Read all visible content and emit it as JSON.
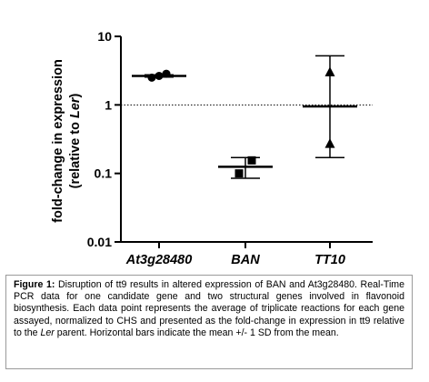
{
  "chart_data": {
    "type": "scatter",
    "title": "",
    "ylabel_line1": "fold-change in expression",
    "ylabel_line2_prefix": "(relative to ",
    "ylabel_line2_italic": "Ler",
    "ylabel_line2_suffix": ")",
    "yscale": "log",
    "ylim": [
      0.01,
      10
    ],
    "yticks": [
      {
        "value": 10,
        "label": "10"
      },
      {
        "value": 1,
        "label": "1"
      },
      {
        "value": 0.1,
        "label": "0.1"
      },
      {
        "value": 0.01,
        "label": "0.01"
      }
    ],
    "reference_line": {
      "value": 1,
      "style": "dotted"
    },
    "categories": [
      "At3g28480",
      "BAN",
      "TT10"
    ],
    "groups": [
      {
        "name": "At3g28480",
        "marker": "circle",
        "points": [
          2.5,
          2.65,
          2.85
        ],
        "mean": 2.65,
        "sd_low": 2.55,
        "sd_high": 2.75
      },
      {
        "name": "BAN",
        "marker": "square",
        "points": [
          0.1,
          0.155
        ],
        "mean": 0.125,
        "sd_low": 0.085,
        "sd_high": 0.17
      },
      {
        "name": "TT10",
        "marker": "triangle",
        "points": [
          0.27,
          3.0
        ],
        "mean": 0.95,
        "sd_low": 0.17,
        "sd_high": 5.2
      }
    ],
    "grid": false,
    "legend": "none"
  },
  "caption": {
    "label": "Figure 1:",
    "text_part1": " Disruption of tt9 results in altered expression of BAN and At3g28480. Real-Time PCR data for one candidate gene and two structural genes involved in flavonoid biosynthesis. Each data point represents the average of triplicate reactions for each gene assayed, normalized to CHS and presented as the fold-change in expression in tt9 relative to the ",
    "text_italic": "Ler",
    "text_part2": " parent.  Horizontal bars indicate the mean +/- 1 SD from the mean."
  }
}
